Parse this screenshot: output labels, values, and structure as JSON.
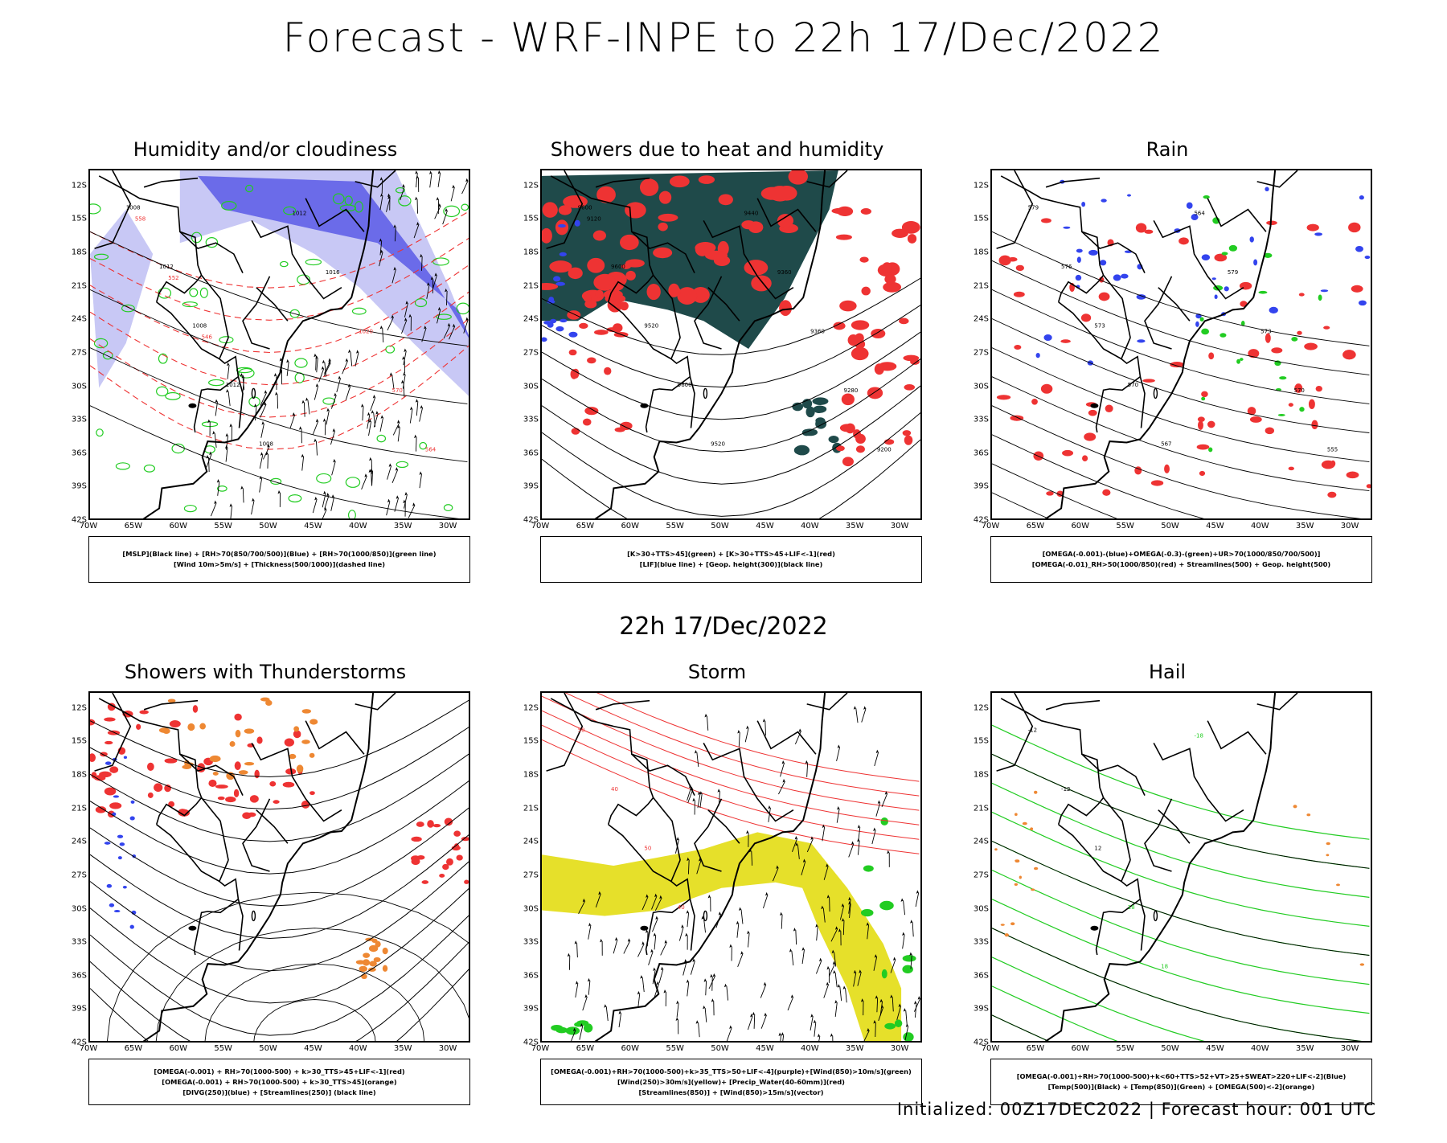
{
  "title": "Forecast - WRF-INPE to 22h 17/Dec/2022",
  "mid_title": "22h 17/Dec/2022",
  "footer": "Initialized: 00Z17DEC2022 | Forecast hour: 001 UTC",
  "lat_ticks": [
    "12S",
    "15S",
    "18S",
    "21S",
    "24S",
    "27S",
    "30S",
    "33S",
    "36S",
    "39S",
    "42S"
  ],
  "lon_ticks": [
    "70W",
    "65W",
    "60W",
    "55W",
    "50W",
    "45W",
    "40W",
    "35W",
    "30W"
  ],
  "colors": {
    "rh_blue": "#5a5ae6",
    "rh_light": "#c8c8f5",
    "green_line": "#22cc22",
    "red": "#ee3333",
    "dark_teal": "#1f4a4a",
    "blue_line": "#3344ee",
    "orange": "#ee8833",
    "yellow": "#e6e02a",
    "green_fill": "#22cc22"
  },
  "panels": [
    {
      "title": "Humidity and/or cloudiness",
      "legend": [
        "[MSLP](Black line) + [RH>70(850/700/500)](Blue) + [RH>70(1000/850)](green line)",
        "[Wind 10m>5m/s] + [Thickness(500/1000)](dashed line)"
      ],
      "labels": [
        "1008",
        "1012",
        "1008",
        "1012",
        "1008",
        "1012",
        "1016",
        "1020",
        "570",
        "564",
        "558",
        "552",
        "546"
      ]
    },
    {
      "title": "Showers due to heat and humidity",
      "legend": [
        "[K>30+TTS>45](green) + [K>30+TTS>45+LIF<-1](red)",
        "[LIF](blue line) + [Geop. height(300)](black line)"
      ],
      "labels": [
        "9600",
        "9600",
        "9520",
        "9600",
        "9520",
        "9440",
        "9360",
        "9360",
        "9280",
        "9200",
        "9120"
      ]
    },
    {
      "title": "Rain",
      "legend": [
        "[OMEGA(-0.001)-(blue)+OMEGA(-0.3)-(green)+UR>70(1000/850/700/500)]",
        "[OMEGA(-0.01)_RH>50(1000/850)(red) + Streamlines(500) + Geop. height(500)"
      ],
      "labels": [
        "579",
        "576",
        "573",
        "570",
        "567",
        "564",
        "579",
        "573",
        "570",
        "555"
      ]
    },
    {
      "title": "Showers with Thunderstorms",
      "legend": [
        "[OMEGA(-0.001) + RH>70(1000-500) + k>30_TTS>45+LIF<-1](red)",
        "[OMEGA(-0.001) + RH>70(1000-500) + k>30_TTS>45](orange)",
        "[DIVG(250)](blue) + [Streamlines(250)] (black line)"
      ],
      "labels": []
    },
    {
      "title": "Storm",
      "legend": [
        "[OMEGA(-0.001)+RH>70(1000-500)+k>35_TTS>50+LIF<-4](purple)+[Wind(850)>10m/s](green)",
        "[Wind(250)>30m/s](yellow)+ [Precip_Water(40-60mm)](red)",
        "[Streamlines(850)] + [Wind(850)>15m/s](vector)"
      ],
      "labels": [
        "50",
        "40",
        "50",
        "40"
      ]
    },
    {
      "title": "Hail",
      "legend": [
        "[OMEGA(-0.001)+RH>70(1000-500)+k<60+TTS>52+VT>25+SWEAT>220+LIF<-2](Blue)",
        "[Temp(500)](Black) + [Temp(850)](Green) + [OMEGA(500)<-2](orange)"
      ],
      "labels": [
        "-12",
        "-12",
        "12",
        "18",
        "18",
        "-18"
      ]
    }
  ]
}
